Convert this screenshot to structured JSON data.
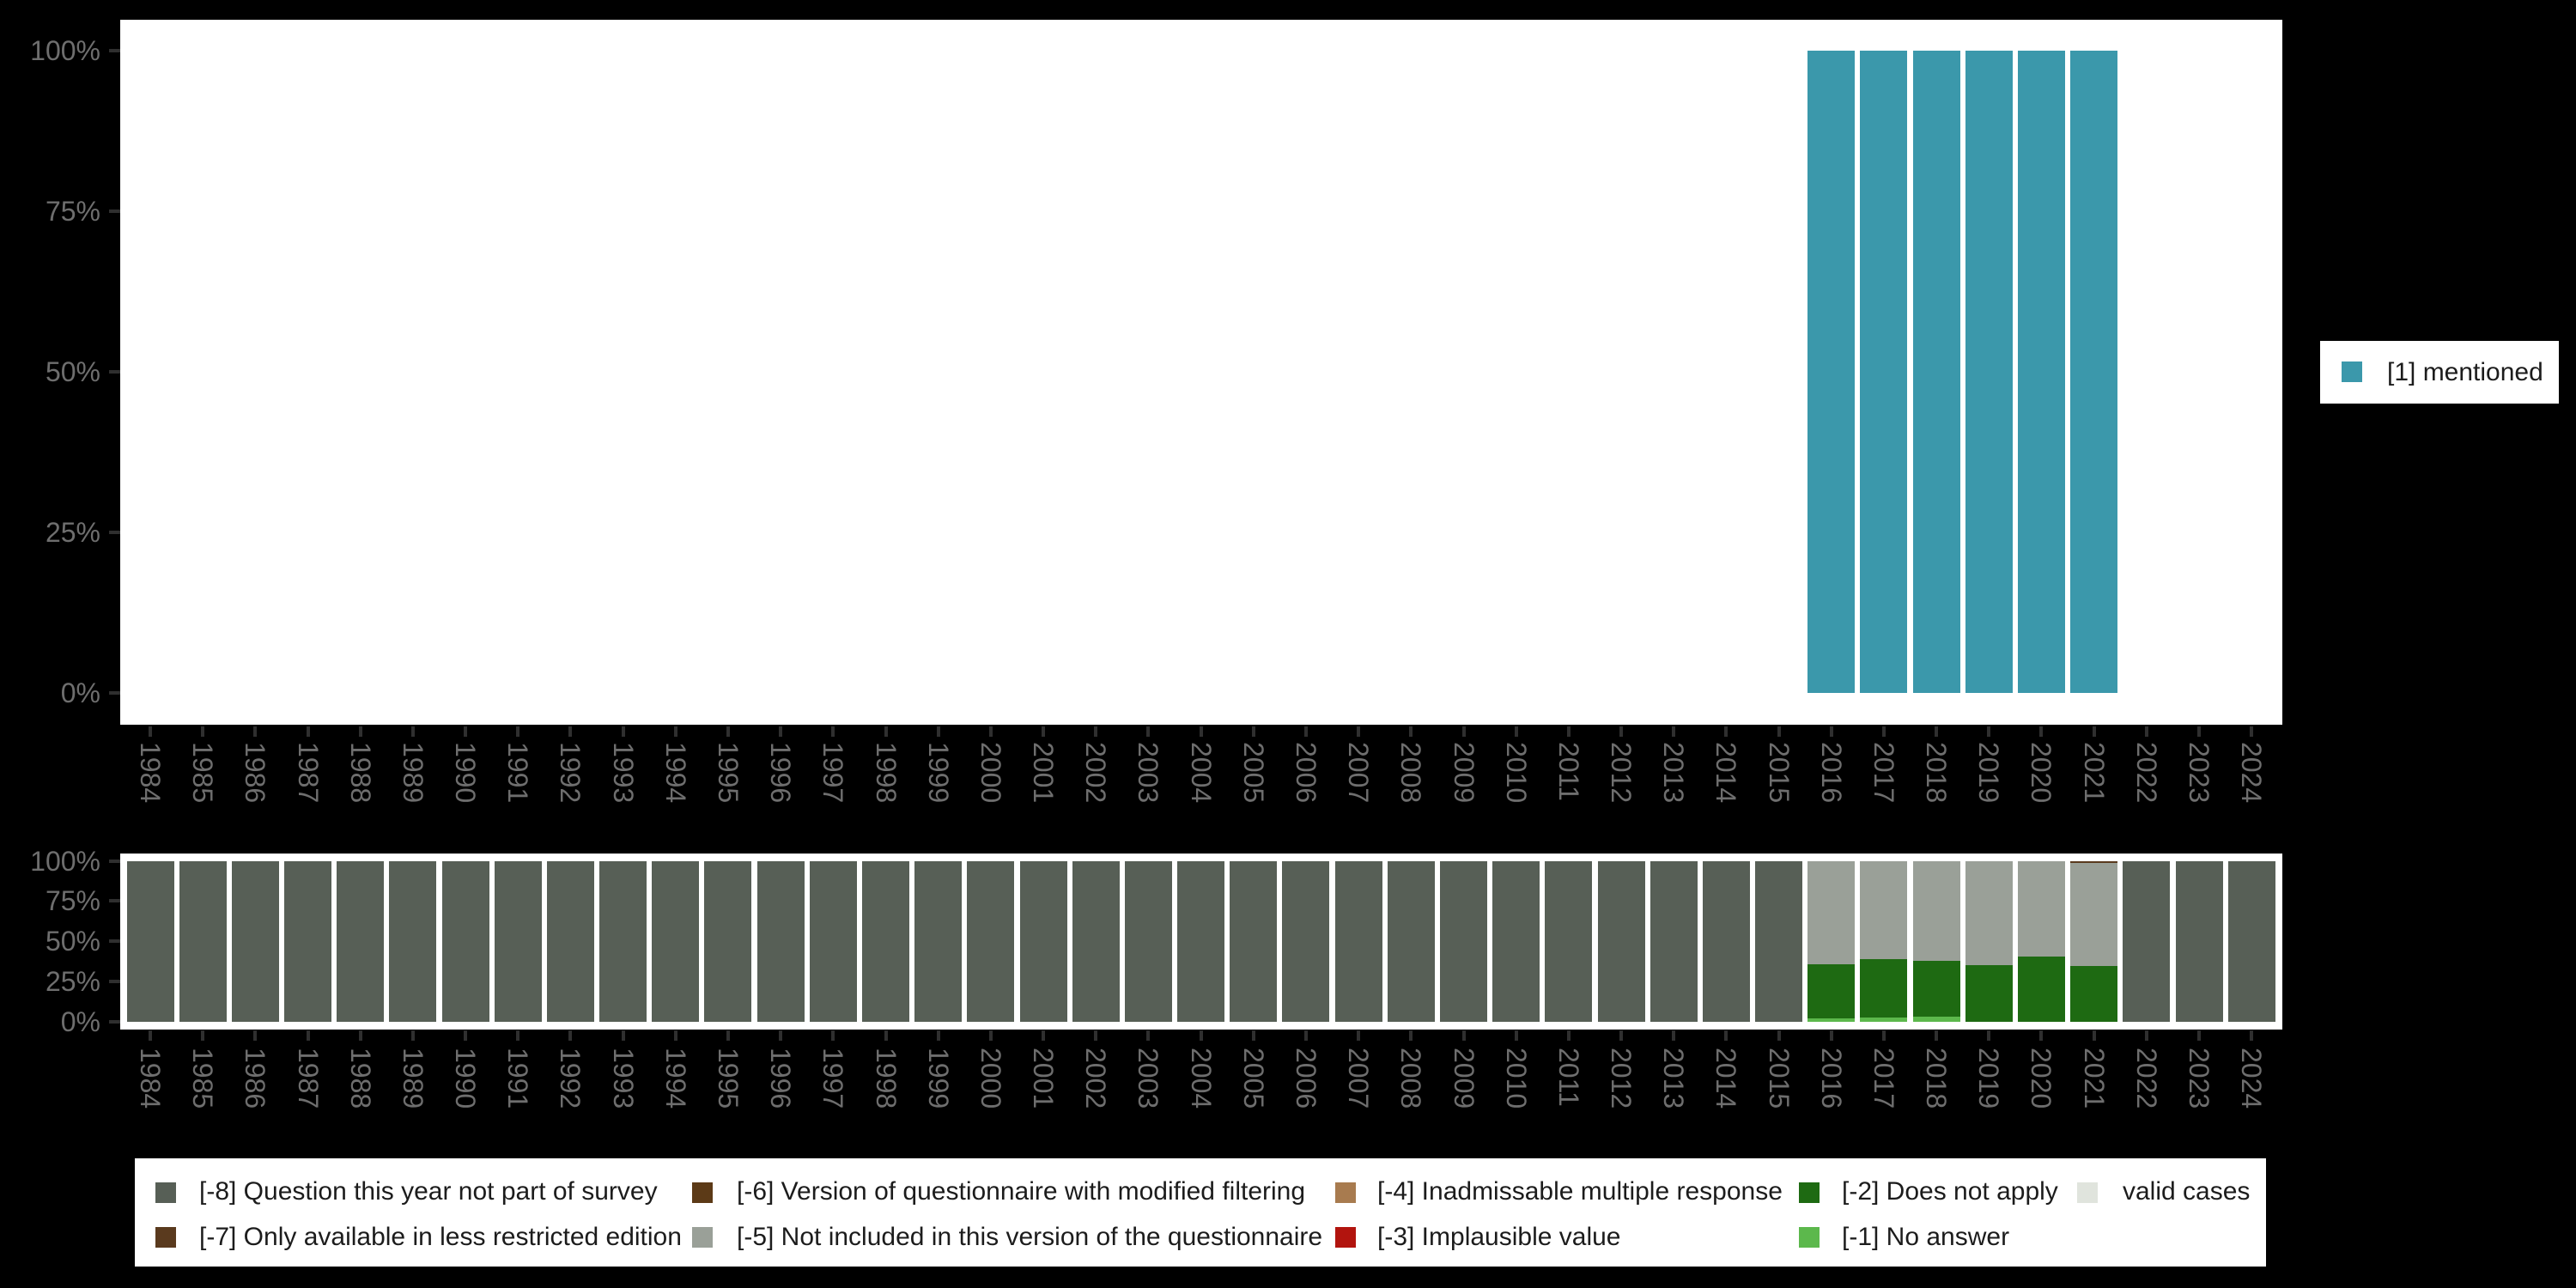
{
  "page": {
    "background": "#000000",
    "plot_background": "#ffffff"
  },
  "colors": {
    "1": "#3b98ab",
    "-8": "#575f56",
    "-7": "#5a3a1e",
    "-6": "#5c3a17",
    "-5": "#9aa098",
    "-4": "#a87b4f",
    "-3": "#b2140e",
    "-2": "#1e6a12",
    "-1": "#5cb84c",
    "valid": "#e0e4dd",
    "axis_text": "#6e6e6e",
    "tick": "#2f2f2f",
    "legend_text": "#1c1c1c"
  },
  "axis": {
    "years": [
      "1984",
      "1985",
      "1986",
      "1987",
      "1988",
      "1989",
      "1990",
      "1991",
      "1992",
      "1993",
      "1994",
      "1995",
      "1996",
      "1997",
      "1998",
      "1999",
      "2000",
      "2001",
      "2002",
      "2003",
      "2004",
      "2005",
      "2006",
      "2007",
      "2008",
      "2009",
      "2010",
      "2011",
      "2012",
      "2013",
      "2014",
      "2015",
      "2016",
      "2017",
      "2018",
      "2019",
      "2020",
      "2021",
      "2022",
      "2023",
      "2024"
    ],
    "y_ticks": [
      {
        "label": "0%",
        "value": 0
      },
      {
        "label": "25%",
        "value": 25
      },
      {
        "label": "50%",
        "value": 50
      },
      {
        "label": "75%",
        "value": 75
      },
      {
        "label": "100%",
        "value": 100
      }
    ]
  },
  "top_legend": {
    "swatch_key": "1",
    "label": "[1] mentioned"
  },
  "bottom_legend": {
    "items": [
      {
        "row": 0,
        "col": 0,
        "key": "-8",
        "label": "[-8] Question this year not part of survey"
      },
      {
        "row": 1,
        "col": 0,
        "key": "-7",
        "label": "[-7] Only available in less restricted edition"
      },
      {
        "row": 0,
        "col": 1,
        "key": "-6",
        "label": "[-6] Version of questionnaire with modified filtering"
      },
      {
        "row": 1,
        "col": 1,
        "key": "-5",
        "label": "[-5] Not included in this version of the questionnaire"
      },
      {
        "row": 0,
        "col": 2,
        "key": "-4",
        "label": "[-4] Inadmissable multiple response"
      },
      {
        "row": 1,
        "col": 2,
        "key": "-3",
        "label": "[-3] Implausible value"
      },
      {
        "row": 0,
        "col": 3,
        "key": "-2",
        "label": "[-2] Does not apply"
      },
      {
        "row": 1,
        "col": 3,
        "key": "-1",
        "label": "[-1] No answer"
      },
      {
        "row": 0,
        "col": 4,
        "key": "valid",
        "label": "valid cases"
      }
    ]
  },
  "chart_data": [
    {
      "id": "top",
      "type": "bar",
      "stacked": true,
      "unit": "percent of valid cases",
      "title": "",
      "xlabel": "",
      "ylabel": "",
      "ylim": [
        0,
        100
      ],
      "grid": false,
      "legend_position": "right",
      "y_tick_labels": [
        "0%",
        "25%",
        "50%",
        "75%",
        "100%"
      ],
      "categories": [
        "1984",
        "1985",
        "1986",
        "1987",
        "1988",
        "1989",
        "1990",
        "1991",
        "1992",
        "1993",
        "1994",
        "1995",
        "1996",
        "1997",
        "1998",
        "1999",
        "2000",
        "2001",
        "2002",
        "2003",
        "2004",
        "2005",
        "2006",
        "2007",
        "2008",
        "2009",
        "2010",
        "2011",
        "2012",
        "2013",
        "2014",
        "2015",
        "2016",
        "2017",
        "2018",
        "2019",
        "2020",
        "2021",
        "2022",
        "2023",
        "2024"
      ],
      "series": [
        {
          "name": "[1] mentioned",
          "key": "1",
          "values": [
            0,
            0,
            0,
            0,
            0,
            0,
            0,
            0,
            0,
            0,
            0,
            0,
            0,
            0,
            0,
            0,
            0,
            0,
            0,
            0,
            0,
            0,
            0,
            0,
            0,
            0,
            0,
            0,
            0,
            0,
            0,
            0,
            100,
            100,
            100,
            100,
            100,
            100,
            0,
            0,
            0
          ]
        }
      ]
    },
    {
      "id": "bottom",
      "type": "bar",
      "stacked": true,
      "unit": "percent of all cases",
      "title": "",
      "xlabel": "",
      "ylabel": "",
      "ylim": [
        0,
        100
      ],
      "grid": false,
      "legend_position": "bottom",
      "y_tick_labels": [
        "0%",
        "25%",
        "50%",
        "75%",
        "100%"
      ],
      "categories": [
        "1984",
        "1985",
        "1986",
        "1987",
        "1988",
        "1989",
        "1990",
        "1991",
        "1992",
        "1993",
        "1994",
        "1995",
        "1996",
        "1997",
        "1998",
        "1999",
        "2000",
        "2001",
        "2002",
        "2003",
        "2004",
        "2005",
        "2006",
        "2007",
        "2008",
        "2009",
        "2010",
        "2011",
        "2012",
        "2013",
        "2014",
        "2015",
        "2016",
        "2017",
        "2018",
        "2019",
        "2020",
        "2021",
        "2022",
        "2023",
        "2024"
      ],
      "stack_order": [
        "-8",
        "-1",
        "-2",
        "-5",
        "-7"
      ],
      "series": [
        {
          "name": "[-8] Question this year not part of survey",
          "key": "-8",
          "values": [
            100,
            100,
            100,
            100,
            100,
            100,
            100,
            100,
            100,
            100,
            100,
            100,
            100,
            100,
            100,
            100,
            100,
            100,
            100,
            100,
            100,
            100,
            100,
            100,
            100,
            100,
            100,
            100,
            100,
            100,
            100,
            100,
            0,
            0,
            0,
            0,
            0,
            0,
            100,
            100,
            100
          ]
        },
        {
          "name": "[-1] No answer",
          "key": "-1",
          "values": [
            0,
            0,
            0,
            0,
            0,
            0,
            0,
            0,
            0,
            0,
            0,
            0,
            0,
            0,
            0,
            0,
            0,
            0,
            0,
            0,
            0,
            0,
            0,
            0,
            0,
            0,
            0,
            0,
            0,
            0,
            0,
            0,
            2.1,
            2.7,
            3.2,
            0,
            0,
            0,
            0,
            0,
            0
          ]
        },
        {
          "name": "[-2] Does not apply",
          "key": "-2",
          "values": [
            0,
            0,
            0,
            0,
            0,
            0,
            0,
            0,
            0,
            0,
            0,
            0,
            0,
            0,
            0,
            0,
            0,
            0,
            0,
            0,
            0,
            0,
            0,
            0,
            0,
            0,
            0,
            0,
            0,
            0,
            0,
            0,
            33.9,
            36.5,
            34.5,
            35.3,
            40.5,
            34.8,
            0,
            0,
            0
          ]
        },
        {
          "name": "[-5] Not included in this version of the questionnaire",
          "key": "-5",
          "values": [
            0,
            0,
            0,
            0,
            0,
            0,
            0,
            0,
            0,
            0,
            0,
            0,
            0,
            0,
            0,
            0,
            0,
            0,
            0,
            0,
            0,
            0,
            0,
            0,
            0,
            0,
            0,
            0,
            0,
            0,
            0,
            0,
            64.0,
            60.8,
            62.3,
            64.7,
            59.5,
            63.9,
            0,
            0,
            0
          ]
        },
        {
          "name": "[-7] Only available in less restricted edition",
          "key": "-7",
          "values": [
            0,
            0,
            0,
            0,
            0,
            0,
            0,
            0,
            0,
            0,
            0,
            0,
            0,
            0,
            0,
            0,
            0,
            0,
            0,
            0,
            0,
            0,
            0,
            0,
            0,
            0,
            0,
            0,
            0,
            0,
            0,
            0,
            0,
            0,
            0,
            0,
            0,
            1.3,
            0,
            0,
            0
          ]
        }
      ]
    }
  ]
}
